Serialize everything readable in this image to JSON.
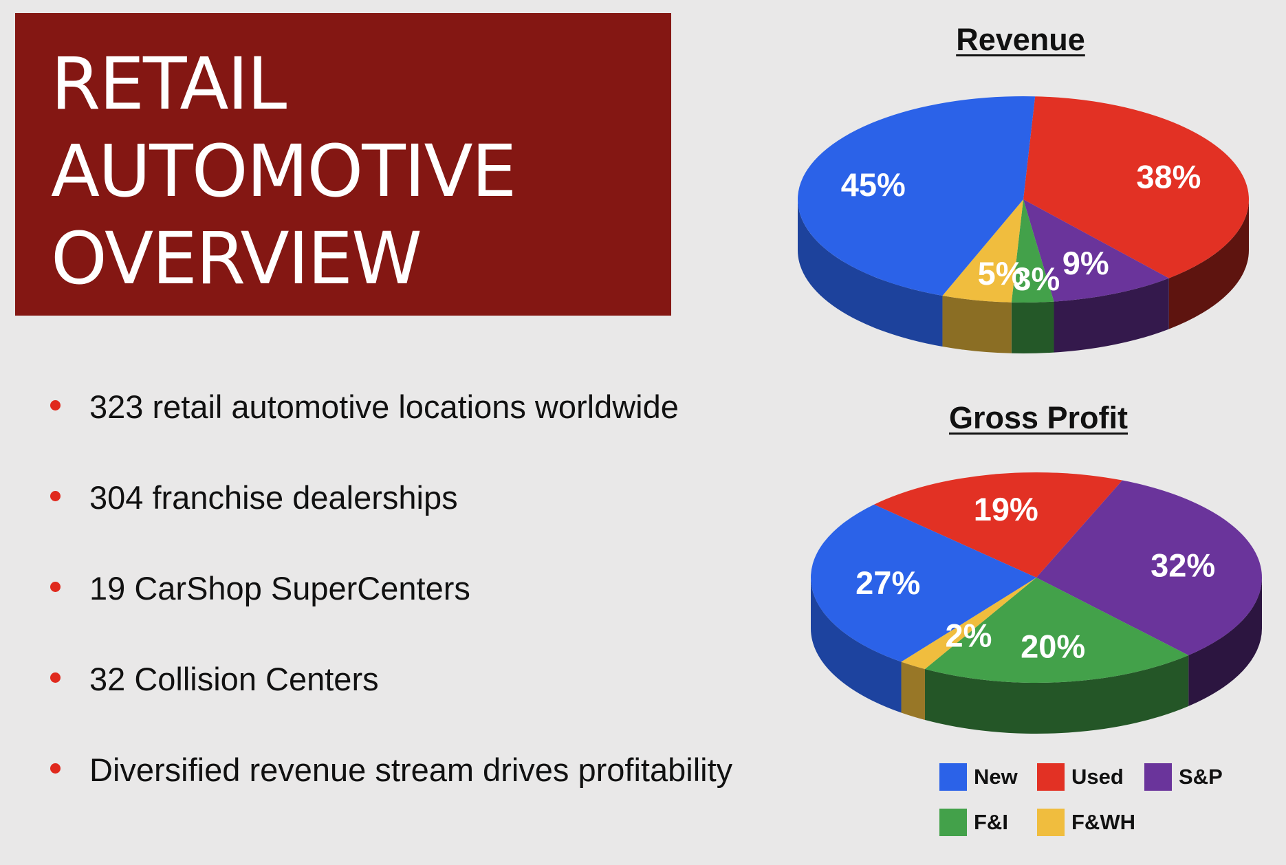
{
  "title": {
    "lines": [
      "RETAIL",
      "AUTOMOTIVE",
      "OVERVIEW"
    ]
  },
  "bullets": [
    "323 retail automotive locations worldwide",
    "304 franchise dealerships",
    "19 CarShop SuperCenters",
    "32 Collision Centers",
    "Diversified revenue stream drives profitability"
  ],
  "colors": {
    "New": "#2b62e8",
    "Used": "#e23124",
    "S&P": "#6a349b",
    "F&I": "#43a14a",
    "F&WH": "#f0bd3e"
  },
  "chart_data": [
    {
      "type": "pie",
      "title": "Revenue",
      "series": [
        {
          "name": "New",
          "value": 45,
          "label": "45%"
        },
        {
          "name": "Used",
          "value": 38,
          "label": "38%"
        },
        {
          "name": "S&P",
          "value": 9,
          "label": "9%"
        },
        {
          "name": "F&I",
          "value": 3,
          "label": "3%"
        },
        {
          "name": "F&WH",
          "value": 5,
          "label": "5%"
        }
      ]
    },
    {
      "type": "pie",
      "title": "Gross Profit",
      "series": [
        {
          "name": "New",
          "value": 27,
          "label": "27%"
        },
        {
          "name": "Used",
          "value": 19,
          "label": "19%"
        },
        {
          "name": "S&P",
          "value": 32,
          "label": "32%"
        },
        {
          "name": "F&I",
          "value": 20,
          "label": "20%"
        },
        {
          "name": "F&WH",
          "value": 2,
          "label": "2%"
        }
      ]
    }
  ],
  "legend": [
    {
      "name": "New",
      "label": "New"
    },
    {
      "name": "Used",
      "label": "Used"
    },
    {
      "name": "S&P",
      "label": "S&P"
    },
    {
      "name": "F&I",
      "label": "F&I"
    },
    {
      "name": "F&WH",
      "label": "F&WH"
    }
  ]
}
